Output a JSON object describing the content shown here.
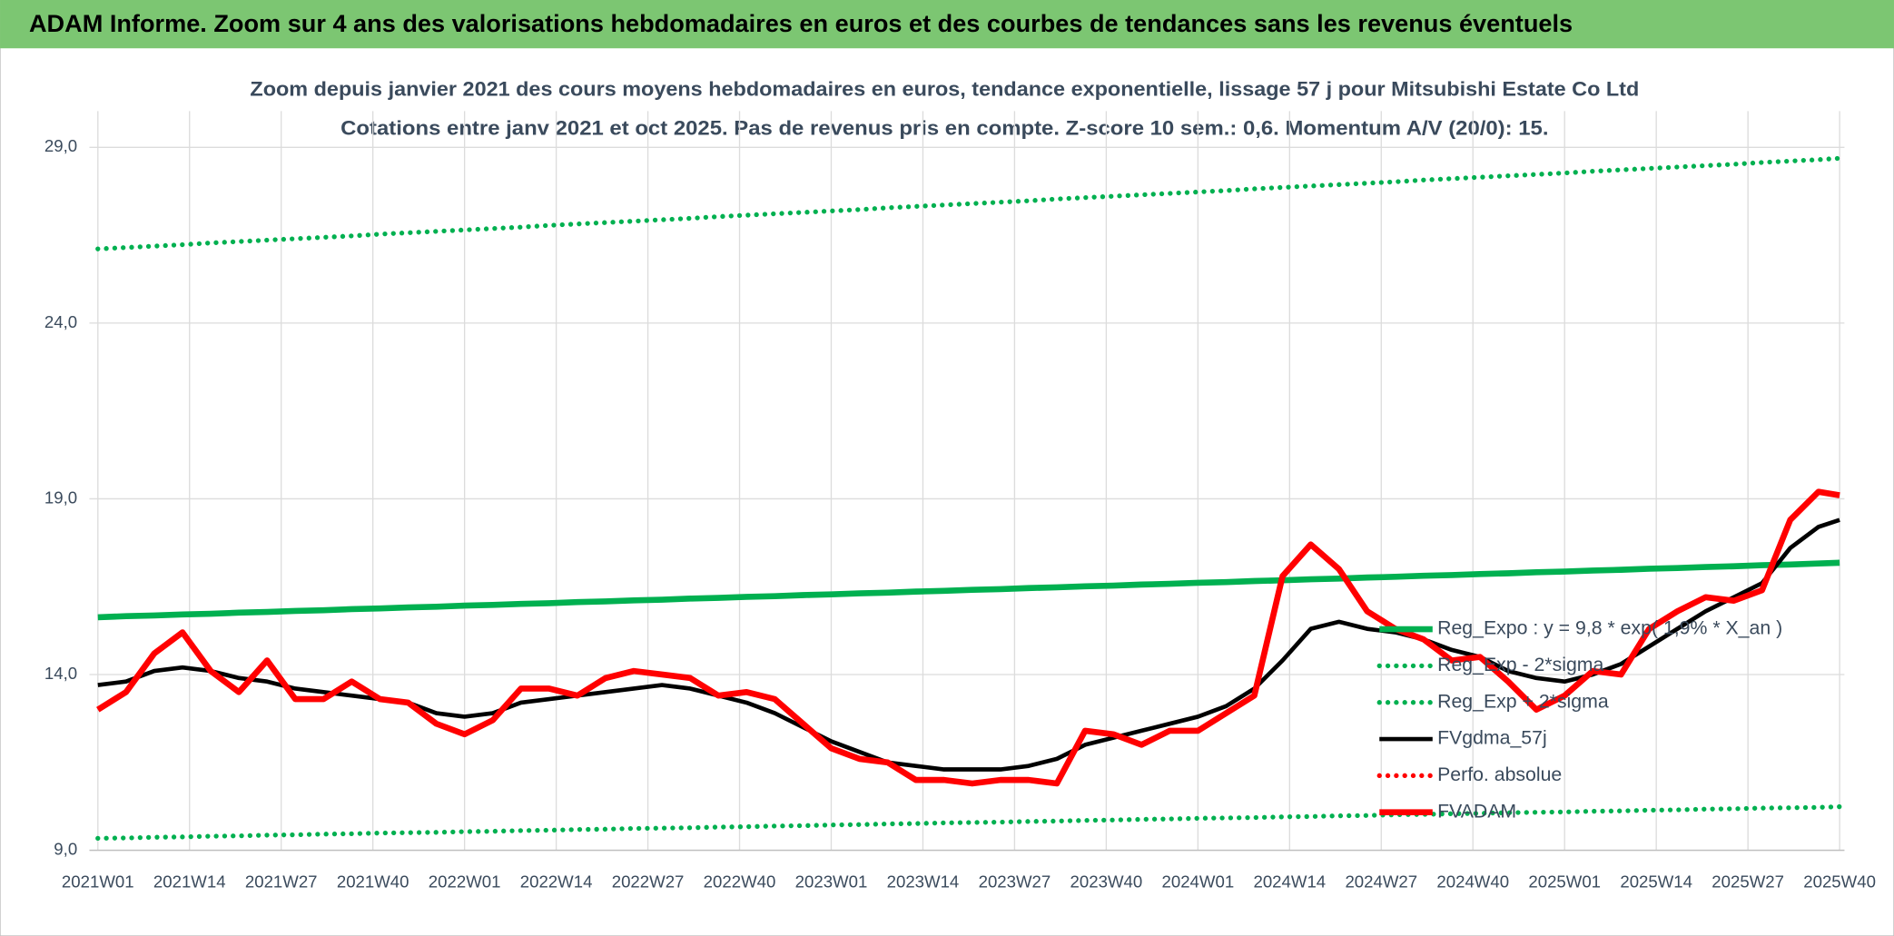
{
  "header": {
    "title": "ADAM Informe. Zoom sur 4 ans des valorisations hebdomadaires en euros et des courbes de tendances sans les revenus éventuels"
  },
  "chart_data": {
    "type": "line",
    "title": "Zoom depuis janvier 2021 des cours moyens hebdomadaires en euros, tendance exponentielle, lissage 57 j pour Mitsubishi Estate Co Ltd",
    "subtitle": "Cotations entre janv 2021 et oct 2025. Pas de revenus pris en compte. Z-score 10 sem.: 0,6. Momentum A/V (20/0): 15.",
    "x": [
      0,
      4,
      8,
      12,
      16,
      20,
      24,
      28,
      32,
      36,
      40,
      44,
      48,
      52,
      56,
      60,
      64,
      68,
      72,
      76,
      80,
      84,
      88,
      92,
      96,
      100,
      104,
      108,
      112,
      116,
      120,
      124,
      128,
      132,
      136,
      140,
      144,
      148,
      152,
      156,
      160,
      164,
      168,
      172,
      176,
      180,
      184,
      188,
      192,
      196,
      200,
      204,
      208,
      212,
      216,
      220,
      224,
      228,
      232,
      236,
      240,
      244,
      247
    ],
    "xlim": [
      0,
      247
    ],
    "xticks": [
      {
        "value": 0,
        "label": "2021W01"
      },
      {
        "value": 13,
        "label": "2021W14"
      },
      {
        "value": 26,
        "label": "2021W27"
      },
      {
        "value": 39,
        "label": "2021W40"
      },
      {
        "value": 52,
        "label": "2022W01"
      },
      {
        "value": 65,
        "label": "2022W14"
      },
      {
        "value": 78,
        "label": "2022W27"
      },
      {
        "value": 91,
        "label": "2022W40"
      },
      {
        "value": 104,
        "label": "2023W01"
      },
      {
        "value": 117,
        "label": "2023W14"
      },
      {
        "value": 130,
        "label": "2023W27"
      },
      {
        "value": 143,
        "label": "2023W40"
      },
      {
        "value": 156,
        "label": "2024W01"
      },
      {
        "value": 169,
        "label": "2024W14"
      },
      {
        "value": 182,
        "label": "2024W27"
      },
      {
        "value": 195,
        "label": "2024W40"
      },
      {
        "value": 208,
        "label": "2025W01"
      },
      {
        "value": 221,
        "label": "2025W14"
      },
      {
        "value": 234,
        "label": "2025W27"
      },
      {
        "value": 247,
        "label": "2025W40"
      }
    ],
    "ylim": [
      9,
      29
    ],
    "yticks": [
      {
        "value": 9,
        "label": "9,0"
      },
      {
        "value": 14,
        "label": "14,0"
      },
      {
        "value": 19,
        "label": "19,0"
      },
      {
        "value": 24,
        "label": "24,0"
      },
      {
        "value": 29,
        "label": "29,0"
      }
    ],
    "grid": true,
    "legend": "right",
    "series": [
      {
        "name": "Reg_Expo : y = 9,8 * exp( 1,9% *  X_an )",
        "color": "#00b050",
        "style": "solid",
        "values": [
          15.63,
          15.66,
          15.68,
          15.71,
          15.73,
          15.76,
          15.78,
          15.81,
          15.83,
          15.86,
          15.88,
          15.91,
          15.93,
          15.96,
          15.98,
          16.01,
          16.03,
          16.06,
          16.08,
          16.11,
          16.13,
          16.16,
          16.18,
          16.21,
          16.23,
          16.26,
          16.28,
          16.31,
          16.33,
          16.36,
          16.38,
          16.41,
          16.43,
          16.46,
          16.48,
          16.51,
          16.53,
          16.56,
          16.58,
          16.61,
          16.63,
          16.66,
          16.68,
          16.71,
          16.73,
          16.76,
          16.78,
          16.81,
          16.83,
          16.86,
          16.88,
          16.91,
          16.93,
          16.96,
          16.98,
          17.01,
          17.03,
          17.06,
          17.08,
          17.11,
          17.13,
          17.16,
          17.18
        ]
      },
      {
        "name": "Reg_Exp - 2*sigma",
        "color": "#00b050",
        "style": "dotted",
        "values": [
          9.34,
          9.35,
          9.37,
          9.38,
          9.4,
          9.41,
          9.43,
          9.44,
          9.46,
          9.47,
          9.49,
          9.5,
          9.51,
          9.53,
          9.54,
          9.56,
          9.57,
          9.59,
          9.6,
          9.62,
          9.63,
          9.64,
          9.66,
          9.67,
          9.69,
          9.7,
          9.72,
          9.73,
          9.75,
          9.76,
          9.78,
          9.79,
          9.8,
          9.82,
          9.83,
          9.85,
          9.86,
          9.88,
          9.89,
          9.91,
          9.92,
          9.93,
          9.95,
          9.96,
          9.98,
          9.99,
          10.01,
          10.02,
          10.04,
          10.05,
          10.07,
          10.08,
          10.09,
          10.11,
          10.12,
          10.14,
          10.15,
          10.17,
          10.18,
          10.2,
          10.21,
          10.22,
          10.24
        ]
      },
      {
        "name": "Reg_Exp + 2*sigma",
        "color": "#00b050",
        "style": "dotted",
        "values": [
          26.11,
          26.15,
          26.19,
          26.23,
          26.28,
          26.32,
          26.36,
          26.4,
          26.44,
          26.48,
          26.53,
          26.57,
          26.61,
          26.65,
          26.69,
          26.73,
          26.78,
          26.82,
          26.86,
          26.9,
          26.94,
          26.98,
          27.03,
          27.07,
          27.11,
          27.15,
          27.19,
          27.23,
          27.28,
          27.32,
          27.36,
          27.4,
          27.44,
          27.48,
          27.53,
          27.57,
          27.61,
          27.65,
          27.69,
          27.73,
          27.77,
          27.82,
          27.86,
          27.9,
          27.94,
          27.98,
          28.02,
          28.07,
          28.11,
          28.15,
          28.19,
          28.23,
          28.27,
          28.32,
          28.36,
          28.4,
          28.44,
          28.48,
          28.52,
          28.57,
          28.61,
          28.65,
          28.69
        ]
      },
      {
        "name": "FVgdma_57j",
        "color": "#000000",
        "style": "solid",
        "values": [
          13.7,
          13.8,
          14.1,
          14.2,
          14.1,
          13.9,
          13.8,
          13.6,
          13.5,
          13.4,
          13.3,
          13.2,
          12.9,
          12.8,
          12.9,
          13.2,
          13.3,
          13.4,
          13.5,
          13.6,
          13.7,
          13.6,
          13.4,
          13.2,
          12.9,
          12.5,
          12.1,
          11.8,
          11.5,
          11.4,
          11.3,
          11.3,
          11.3,
          11.4,
          11.6,
          12.0,
          12.2,
          12.4,
          12.6,
          12.8,
          13.1,
          13.6,
          14.4,
          15.3,
          15.5,
          15.3,
          15.2,
          15.0,
          14.7,
          14.5,
          14.1,
          13.9,
          13.8,
          14.0,
          14.3,
          14.8,
          15.3,
          15.8,
          16.2,
          16.6,
          17.6,
          18.2,
          18.4
        ]
      },
      {
        "name": "Perfo. absolue",
        "color": "#ff0000",
        "style": "dotted",
        "values": [
          null,
          null,
          null,
          null,
          null,
          null,
          null,
          null,
          null,
          null,
          null,
          null,
          null,
          null,
          null,
          null,
          null,
          null,
          null,
          null,
          null,
          null,
          null,
          null,
          null,
          null,
          null,
          null,
          null,
          null,
          null,
          null,
          null,
          null,
          null,
          null,
          null,
          null,
          null,
          null,
          null,
          null,
          null,
          null,
          null,
          null,
          null,
          null,
          null,
          null,
          null,
          null,
          null,
          null,
          null,
          null,
          null,
          null,
          null,
          null,
          null,
          null,
          null
        ]
      },
      {
        "name": "FVADAM",
        "color": "#ff0000",
        "style": "solid",
        "values": [
          13.0,
          13.5,
          14.6,
          15.2,
          14.1,
          13.5,
          14.4,
          13.3,
          13.3,
          13.8,
          13.3,
          13.2,
          12.6,
          12.3,
          12.7,
          13.6,
          13.6,
          13.4,
          13.9,
          14.1,
          14.0,
          13.9,
          13.4,
          13.5,
          13.3,
          12.6,
          11.9,
          11.6,
          11.5,
          11.0,
          11.0,
          10.9,
          11.0,
          11.0,
          10.9,
          12.4,
          12.3,
          12.0,
          12.4,
          12.4,
          12.9,
          13.4,
          16.8,
          17.7,
          17.0,
          15.8,
          15.3,
          15.0,
          14.4,
          14.5,
          13.8,
          13.0,
          13.4,
          14.1,
          14.0,
          15.3,
          15.8,
          16.2,
          16.1,
          16.4,
          18.4,
          19.2,
          19.1
        ]
      }
    ]
  }
}
